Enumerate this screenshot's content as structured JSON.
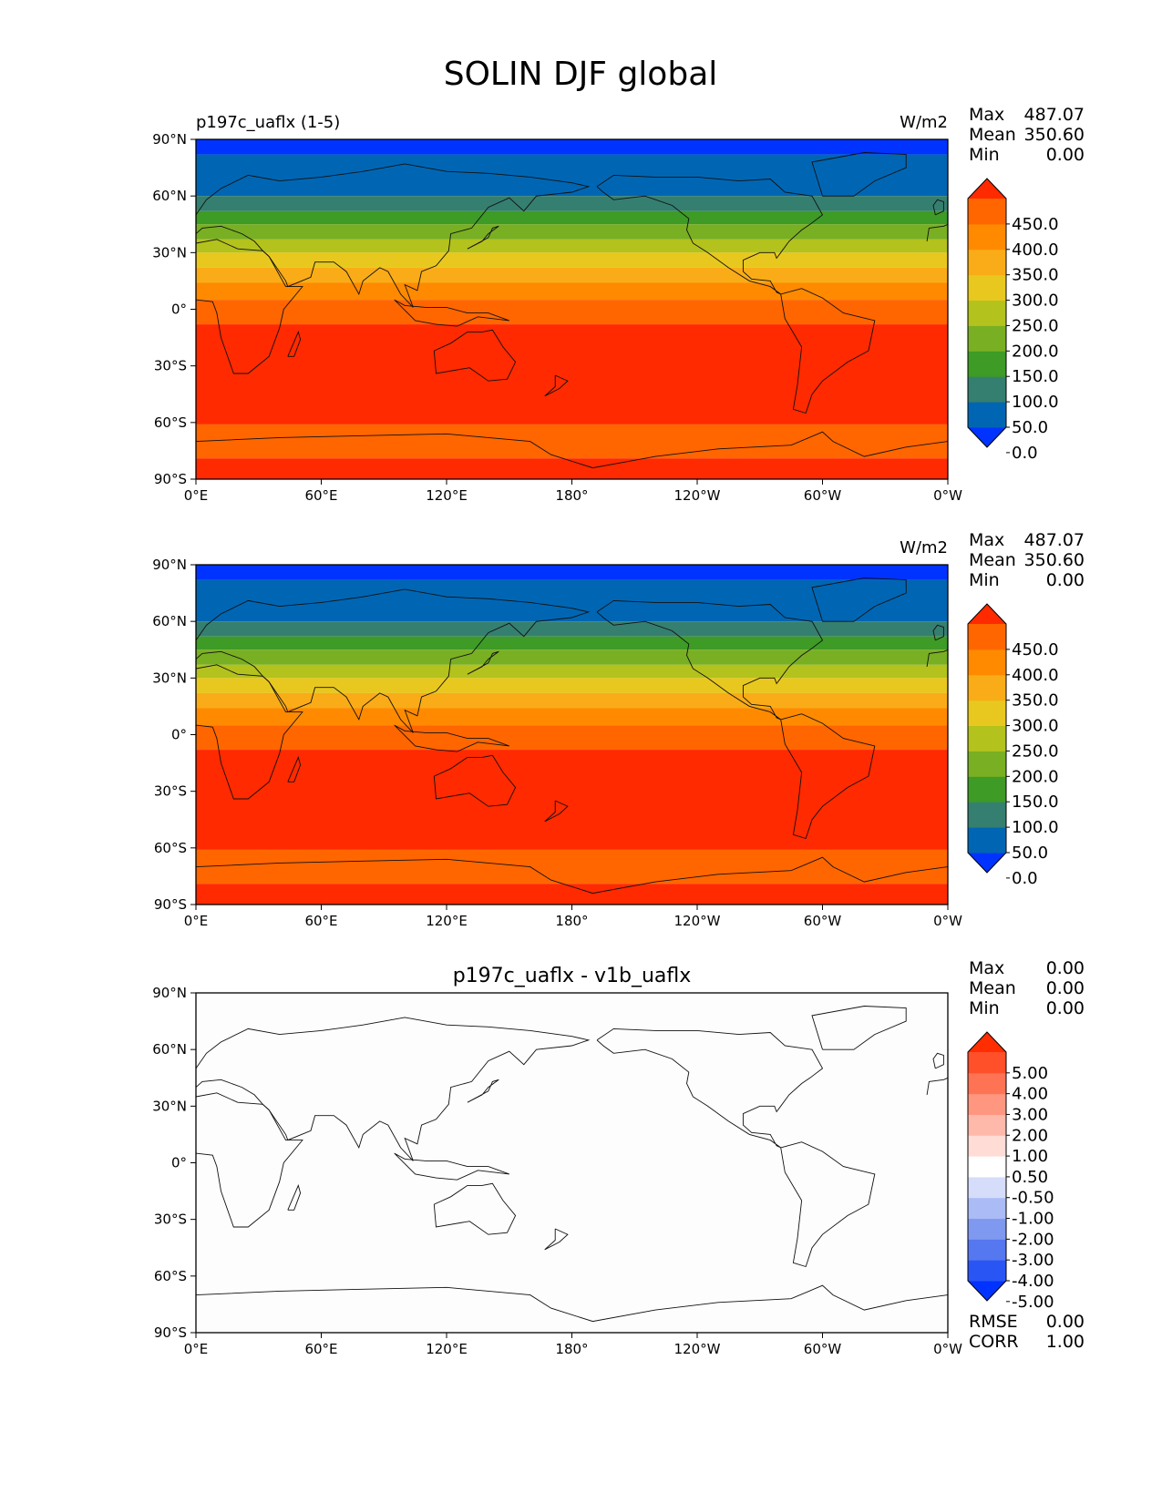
{
  "suptitle": "SOLIN DJF global",
  "chart_data": [
    {
      "type": "heatmap",
      "title_left": "p197c_uaflx (1-5)",
      "title_center": "",
      "units": "W/m2",
      "stats": [
        {
          "label": "Max",
          "value": "487.07"
        },
        {
          "label": "Mean",
          "value": "350.60"
        },
        {
          "label": "Min",
          "value": "0.00"
        }
      ],
      "xticks": [
        "0°E",
        "60°E",
        "120°E",
        "180°",
        "120°W",
        "60°W",
        "0°W"
      ],
      "yticks": [
        "90°N",
        "60°N",
        "30°N",
        "0°",
        "30°S",
        "60°S",
        "90°S"
      ],
      "xlim": [
        0,
        360
      ],
      "ylim": [
        -90,
        90
      ],
      "field": "solin",
      "colorbar": {
        "colors": [
          "#0033ff",
          "#0066b3",
          "#357f70",
          "#3d9b26",
          "#79af22",
          "#b3c21d",
          "#e8c81e",
          "#f9ac17",
          "#ff8a00",
          "#ff6600",
          "#ff2a00"
        ],
        "labels": [
          "450.0",
          "400.0",
          "350.0",
          "300.0",
          "250.0",
          "200.0",
          "150.0",
          "100.0",
          "50.0",
          "0.0"
        ]
      },
      "bands": [
        {
          "from": 82,
          "to": 90,
          "level": 0
        },
        {
          "from": 60,
          "to": 82,
          "level": 1
        },
        {
          "from": 52,
          "to": 60,
          "level": 2
        },
        {
          "from": 45,
          "to": 52,
          "level": 3
        },
        {
          "from": 37,
          "to": 45,
          "level": 4
        },
        {
          "from": 30,
          "to": 37,
          "level": 5
        },
        {
          "from": 22,
          "to": 30,
          "level": 6
        },
        {
          "from": 14,
          "to": 22,
          "level": 7
        },
        {
          "from": 5,
          "to": 14,
          "level": 8
        },
        {
          "from": -8,
          "to": 5,
          "level": 9
        },
        {
          "from": -61,
          "to": -8,
          "level": 10
        },
        {
          "from": -79,
          "to": -61,
          "level": 9
        },
        {
          "from": -90,
          "to": -79,
          "level": 10
        }
      ]
    },
    {
      "type": "heatmap",
      "title_left": "",
      "title_center": "",
      "units": "W/m2",
      "stats": [
        {
          "label": "Max",
          "value": "487.07"
        },
        {
          "label": "Mean",
          "value": "350.60"
        },
        {
          "label": "Min",
          "value": "0.00"
        }
      ],
      "xticks": [
        "0°E",
        "60°E",
        "120°E",
        "180°",
        "120°W",
        "60°W",
        "0°W"
      ],
      "yticks": [
        "90°N",
        "60°N",
        "30°N",
        "0°",
        "30°S",
        "60°S",
        "90°S"
      ],
      "xlim": [
        0,
        360
      ],
      "ylim": [
        -90,
        90
      ],
      "field": "solin",
      "colorbar": {
        "colors": [
          "#0033ff",
          "#0066b3",
          "#357f70",
          "#3d9b26",
          "#79af22",
          "#b3c21d",
          "#e8c81e",
          "#f9ac17",
          "#ff8a00",
          "#ff6600",
          "#ff2a00"
        ],
        "labels": [
          "450.0",
          "400.0",
          "350.0",
          "300.0",
          "250.0",
          "200.0",
          "150.0",
          "100.0",
          "50.0",
          "0.0"
        ]
      },
      "bands": [
        {
          "from": 82,
          "to": 90,
          "level": 0
        },
        {
          "from": 60,
          "to": 82,
          "level": 1
        },
        {
          "from": 52,
          "to": 60,
          "level": 2
        },
        {
          "from": 45,
          "to": 52,
          "level": 3
        },
        {
          "from": 37,
          "to": 45,
          "level": 4
        },
        {
          "from": 30,
          "to": 37,
          "level": 5
        },
        {
          "from": 22,
          "to": 30,
          "level": 6
        },
        {
          "from": 14,
          "to": 22,
          "level": 7
        },
        {
          "from": 5,
          "to": 14,
          "level": 8
        },
        {
          "from": -8,
          "to": 5,
          "level": 9
        },
        {
          "from": -61,
          "to": -8,
          "level": 10
        },
        {
          "from": -79,
          "to": -61,
          "level": 9
        },
        {
          "from": -90,
          "to": -79,
          "level": 10
        }
      ]
    },
    {
      "type": "heatmap",
      "title_left": "",
      "title_center": "p197c_uaflx - v1b_uaflx",
      "units": "",
      "stats": [
        {
          "label": "Max",
          "value": "0.00"
        },
        {
          "label": "Mean",
          "value": "0.00"
        },
        {
          "label": "Min",
          "value": "0.00"
        }
      ],
      "extra_stats": [
        {
          "label": "RMSE",
          "value": "0.00"
        },
        {
          "label": "CORR",
          "value": "1.00"
        }
      ],
      "xticks": [
        "0°E",
        "60°E",
        "120°E",
        "180°",
        "120°W",
        "60°W",
        "0°W"
      ],
      "yticks": [
        "90°N",
        "60°N",
        "30°N",
        "0°",
        "30°S",
        "60°S",
        "90°S"
      ],
      "xlim": [
        0,
        360
      ],
      "ylim": [
        -90,
        90
      ],
      "field": "difference",
      "colorbar": {
        "colors": [
          "#0033ff",
          "#2a55f5",
          "#5577f0",
          "#7f99f0",
          "#aabbf5",
          "#d5ddfa",
          "#ffffff",
          "#ffdcd5",
          "#ffb9aa",
          "#ff9680",
          "#ff7355",
          "#ff502a",
          "#ff2d00"
        ],
        "labels": [
          "5.00",
          "4.00",
          "3.00",
          "2.00",
          "1.00",
          "0.50",
          "-0.50",
          "-1.00",
          "-2.00",
          "-3.00",
          "-4.00",
          "-5.00"
        ]
      },
      "bands": [
        {
          "from": -90,
          "to": 90,
          "color": "#fdfdfd"
        }
      ]
    }
  ]
}
